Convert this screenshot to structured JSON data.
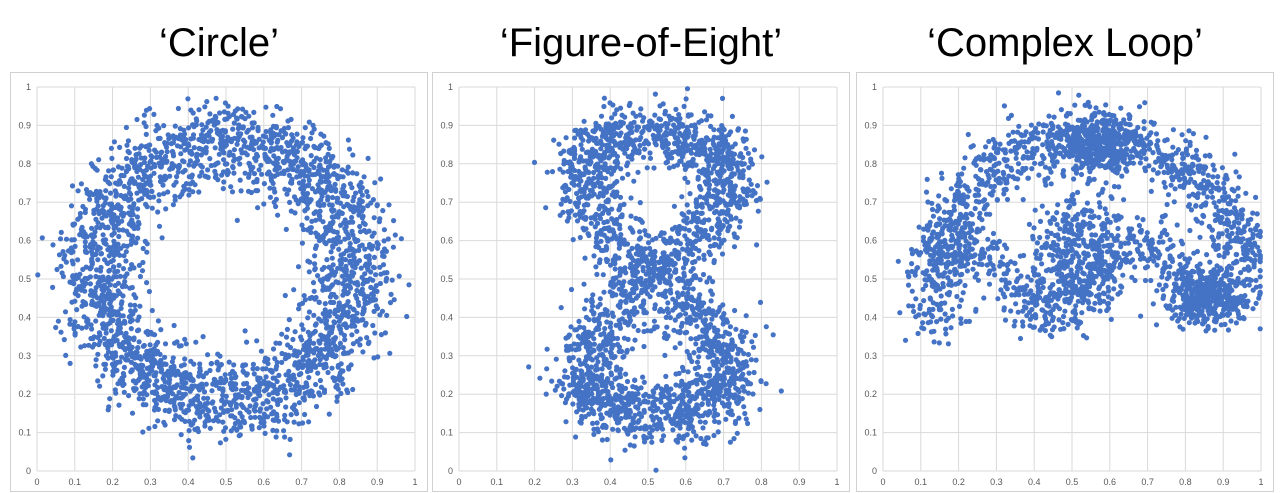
{
  "chart_data": [
    {
      "type": "scatter",
      "title": "‘Circle’",
      "xlim": [
        0,
        1
      ],
      "ylim": [
        0,
        1
      ],
      "xticks": [
        "0",
        "0.1",
        "0.2",
        "0.3",
        "0.4",
        "0.5",
        "0.6",
        "0.7",
        "0.8",
        "0.9",
        "1"
      ],
      "yticks": [
        "0",
        "0.1",
        "0.2",
        "0.3",
        "0.4",
        "0.5",
        "0.6",
        "0.7",
        "0.8",
        "0.9",
        "1"
      ],
      "grid": true,
      "color": "#4472C4",
      "shape": "ring",
      "params": {
        "cx": 0.5,
        "cy": 0.52,
        "r": 0.34,
        "noise": 0.055,
        "n": 2600
      }
    },
    {
      "type": "scatter",
      "title": "‘Figure-of-Eight’",
      "xlim": [
        0,
        1
      ],
      "ylim": [
        0,
        1
      ],
      "xticks": [
        "0",
        "0.1",
        "0.2",
        "0.3",
        "0.4",
        "0.5",
        "0.6",
        "0.7",
        "0.8",
        "0.9",
        "1"
      ],
      "yticks": [
        "0",
        "0.1",
        "0.2",
        "0.3",
        "0.4",
        "0.5",
        "0.6",
        "0.7",
        "0.8",
        "0.9",
        "1"
      ],
      "grid": true,
      "color": "#4472C4",
      "shape": "figure-eight",
      "params": {
        "cx": 0.52,
        "cy": 0.51,
        "ax": 0.19,
        "ay": 0.36,
        "noise": 0.045,
        "n": 2600
      }
    },
    {
      "type": "scatter",
      "title": "‘Complex Loop’",
      "xlim": [
        0,
        1
      ],
      "ylim": [
        0,
        1
      ],
      "xticks": [
        "0",
        "0.1",
        "0.2",
        "0.3",
        "0.4",
        "0.5",
        "0.6",
        "0.7",
        "0.8",
        "0.9",
        "1"
      ],
      "yticks": [
        "0",
        "0.1",
        "0.2",
        "0.3",
        "0.4",
        "0.5",
        "0.6",
        "0.7",
        "0.8",
        "0.9",
        "1"
      ],
      "grid": true,
      "color": "#4472C4",
      "shape": "complex-loop",
      "params": {
        "noise": 0.04,
        "n": 2700
      }
    }
  ]
}
